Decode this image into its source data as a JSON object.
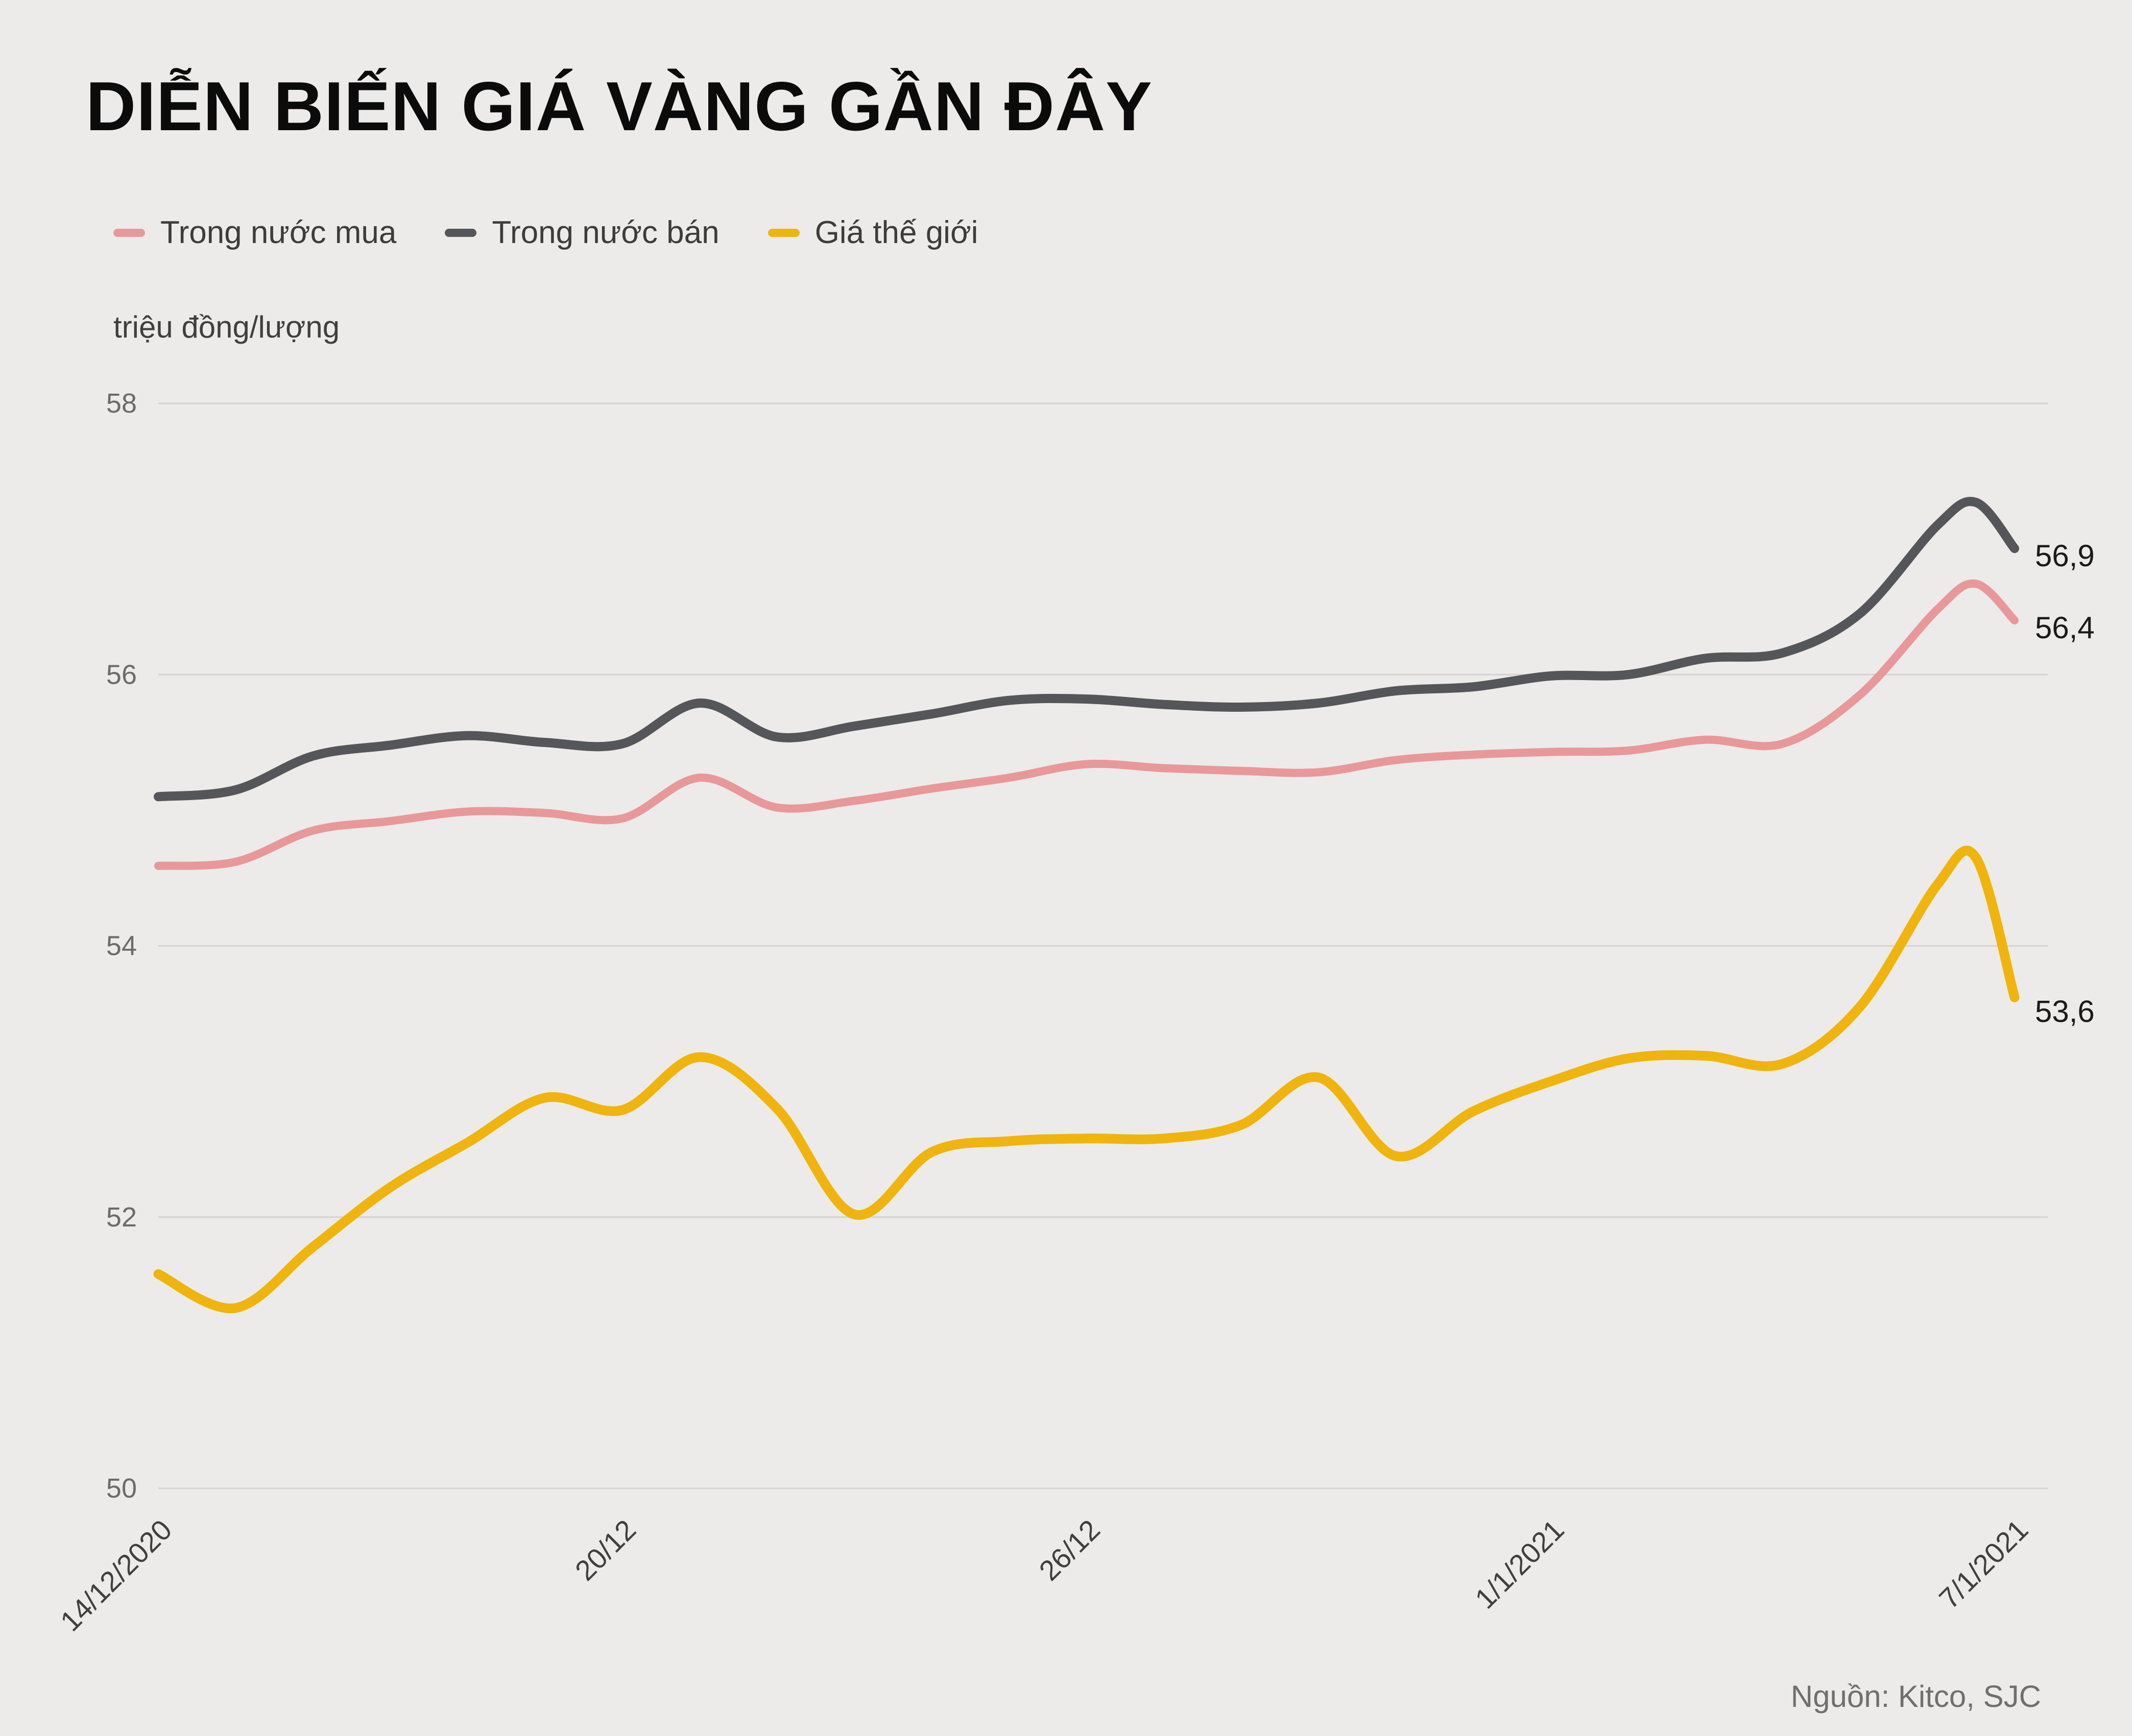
{
  "title": "DIỄN BIẾN GIÁ VÀNG GẦN ĐÂY",
  "unit_label": "triệu đồng/lượng",
  "source_note": "Nguồn: Kitco, SJC",
  "colors": {
    "background": "#ECEBE9",
    "grid": "#D6D3D0",
    "y_tick_text": "#6B6B6B",
    "x_tick_text": "#3F3F3F",
    "end_label_text": "#1A1A1A",
    "domestic_buy": "#E8989A",
    "domestic_sell": "#55565A",
    "world": "#F0B40E"
  },
  "legend": [
    {
      "label": "Trong nước mua",
      "color": "#E8989A"
    },
    {
      "label": "Trong nước bán",
      "color": "#55565A"
    },
    {
      "label": "Giá thế giới",
      "color": "#F0B40E"
    }
  ],
  "chart_data": {
    "type": "line",
    "title": "DIỄN BIẾN GIÁ VÀNG GẦN ĐÂY",
    "ylabel": "triệu đồng/lượng",
    "ylim": [
      50,
      58
    ],
    "yticks": [
      58,
      56,
      54,
      52,
      50
    ],
    "grid": true,
    "legend_position": "top-left",
    "x_tick_labels": [
      "14/12/2020",
      "20/12",
      "26/12",
      "1/1/2021",
      "7/1/2021"
    ],
    "x_range_days": [
      0,
      24
    ],
    "x": [
      0,
      1,
      2,
      3,
      4,
      5,
      6,
      7,
      8,
      9,
      10,
      11,
      12,
      13,
      14,
      15,
      16,
      17,
      18,
      19,
      20,
      21,
      22,
      23,
      23.5,
      24
    ],
    "series": [
      {
        "name": "Trong nước mua",
        "color": "#E8989A",
        "end_label": "56,4",
        "end_value": 56.4,
        "values": [
          54.59,
          54.62,
          54.85,
          54.92,
          54.99,
          54.98,
          54.94,
          55.24,
          55.02,
          55.07,
          55.16,
          55.24,
          55.34,
          55.31,
          55.29,
          55.28,
          55.37,
          55.41,
          55.43,
          55.44,
          55.52,
          55.49,
          55.85,
          56.48,
          56.67,
          56.4
        ]
      },
      {
        "name": "Trong nước bán",
        "color": "#55565A",
        "end_label": "56,9",
        "end_value": 56.9,
        "values": [
          55.1,
          55.15,
          55.4,
          55.48,
          55.55,
          55.5,
          55.49,
          55.79,
          55.54,
          55.62,
          55.71,
          55.81,
          55.82,
          55.78,
          55.76,
          55.79,
          55.88,
          55.91,
          55.99,
          56.0,
          56.12,
          56.16,
          56.45,
          57.1,
          57.27,
          56.93
        ]
      },
      {
        "name": "Giá thế giới",
        "color": "#F0B40E",
        "end_label": "53,6",
        "end_value": 53.6,
        "values": [
          51.58,
          51.33,
          51.78,
          52.22,
          52.55,
          52.88,
          52.79,
          53.18,
          52.8,
          52.02,
          52.48,
          52.56,
          52.58,
          52.58,
          52.68,
          53.03,
          52.45,
          52.78,
          53.0,
          53.17,
          53.19,
          53.13,
          53.55,
          54.45,
          54.65,
          53.62
        ]
      }
    ]
  }
}
